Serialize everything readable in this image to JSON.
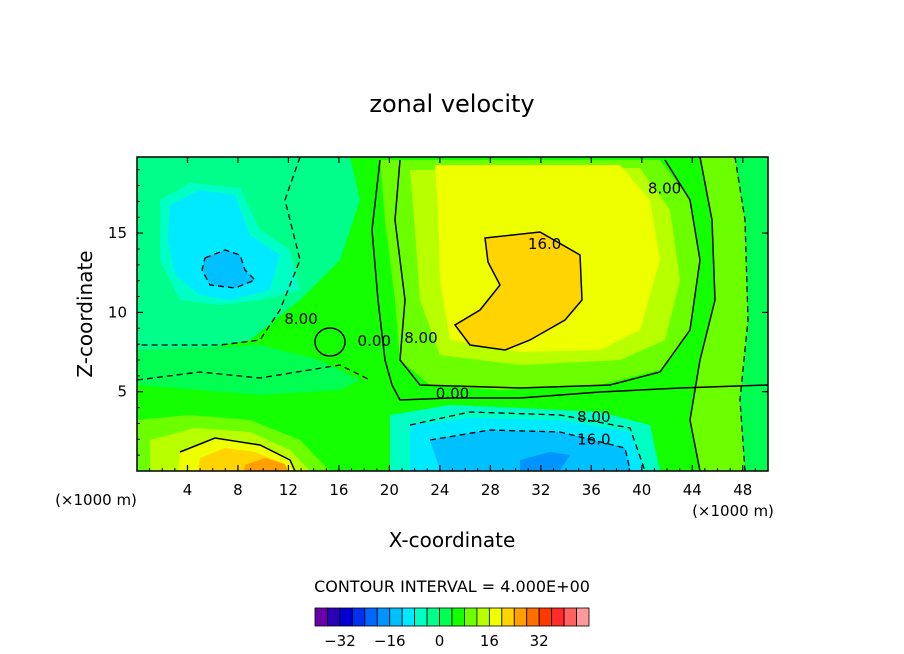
{
  "chart_data": {
    "type": "heatmap",
    "title": "zonal velocity",
    "xlabel": "X-coordinate",
    "ylabel": "Z-coordinate",
    "x_units": "(×1000 m)",
    "y_units": "(×1000 m)",
    "xlim": [
      0,
      50
    ],
    "ylim": [
      0,
      19.8
    ],
    "x_ticks": [
      4,
      8,
      12,
      16,
      20,
      24,
      28,
      32,
      36,
      40,
      44,
      48
    ],
    "y_ticks": [
      5,
      10,
      15
    ],
    "contour_interval_text": "CONTOUR INTERVAL = 4.000E+00",
    "contour_labels": [
      {
        "text": "16.0",
        "x": 32.3,
        "y": 14.3
      },
      {
        "text": "8.00",
        "x": 41.8,
        "y": 17.8
      },
      {
        "text": "8.00",
        "x": 13.0,
        "y": 9.6
      },
      {
        "text": "0.00",
        "x": 18.8,
        "y": 8.2
      },
      {
        "text": "8.00",
        "x": 22.5,
        "y": 8.4
      },
      {
        "text": "0.00",
        "x": 25.0,
        "y": 4.9
      },
      {
        "text": "8.00",
        "x": 36.2,
        "y": 3.4
      },
      {
        "text": "16.0",
        "x": 36.2,
        "y": 2.0
      }
    ],
    "colorbar": {
      "levels": [
        -36,
        -32,
        -28,
        -24,
        -20,
        -16,
        -12,
        -8,
        -4,
        0,
        4,
        8,
        12,
        16,
        20,
        24,
        28,
        32,
        36
      ],
      "tick_labels": [
        "−32",
        "−16",
        "0",
        "16",
        "32"
      ],
      "tick_values": [
        -32,
        -16,
        0,
        16,
        32
      ],
      "colors": [
        "#6a00a8",
        "#2a00b4",
        "#0000d2",
        "#0030f0",
        "#0068ff",
        "#0094ff",
        "#00c0ff",
        "#00eaff",
        "#00ffc4",
        "#00ff8a",
        "#00ff50",
        "#14ff00",
        "#6cff00",
        "#b8ff00",
        "#eeff00",
        "#ffd400",
        "#ffa000",
        "#ff6e00",
        "#ff3a00",
        "#ff2a2a",
        "#ff6060",
        "#ff9898"
      ]
    },
    "legend": "colorbar bottom-center",
    "grid": false
  }
}
